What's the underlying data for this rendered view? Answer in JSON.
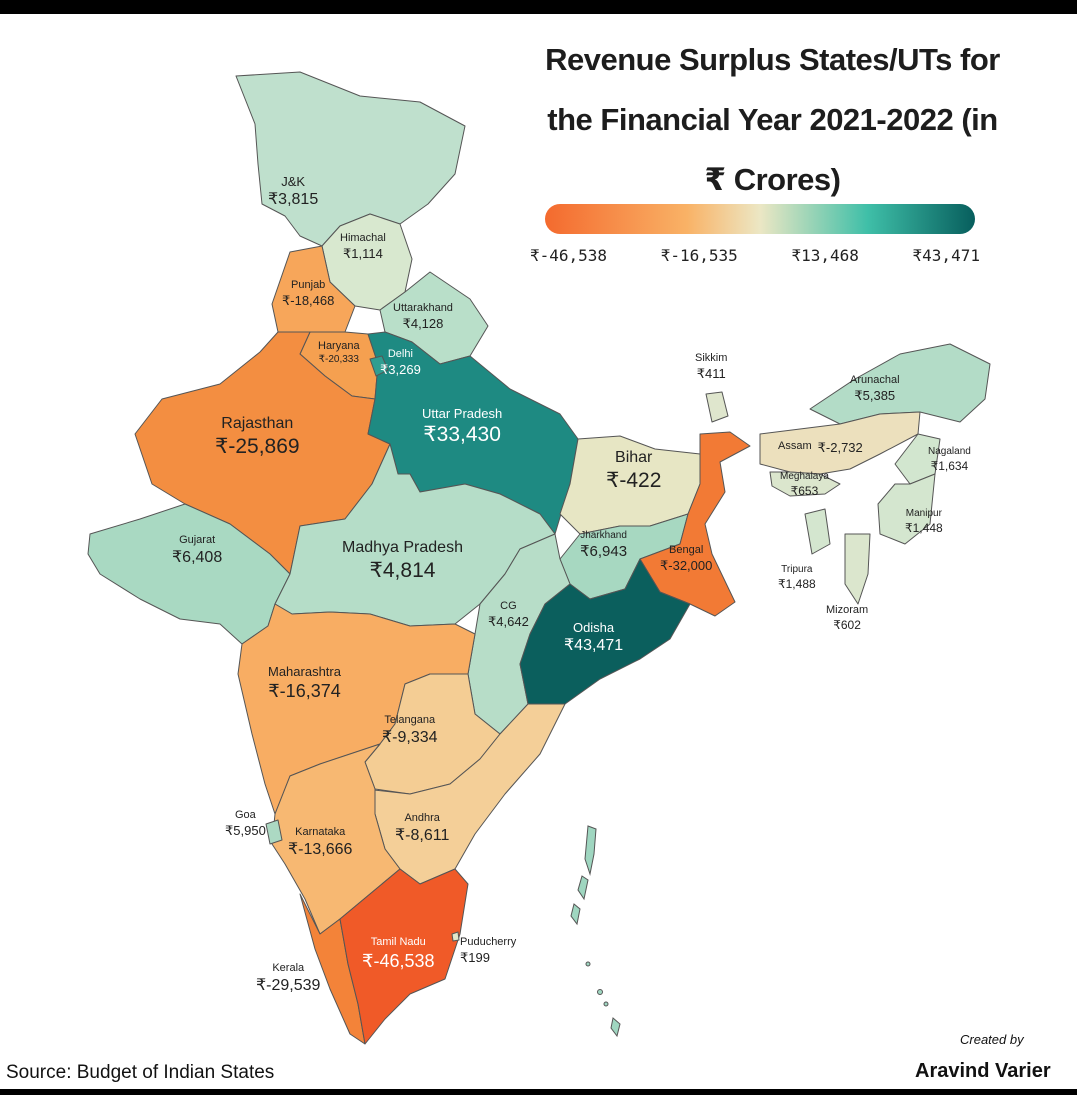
{
  "title_lines": [
    "Revenue Surplus States/UTs for",
    "the Financial Year 2021-2022 (in",
    "₹ Crores)"
  ],
  "legend": {
    "ticks": [
      "₹-46,538",
      "₹-16,535",
      "₹13,468",
      "₹43,471"
    ],
    "colors": [
      "#f46a2e",
      "#f9b266",
      "#ece7c4",
      "#3fbfa8",
      "#075e5d"
    ]
  },
  "regions": [
    {
      "name": "J&K",
      "value": "₹3,815",
      "color": "#bfe0cd"
    },
    {
      "name": "Himachal",
      "value": "₹1,114",
      "color": "#d8e8cf"
    },
    {
      "name": "Punjab",
      "value": "₹-18,468",
      "color": "#f7a65a"
    },
    {
      "name": "Haryana",
      "value": "₹-20,333",
      "color": "#f5a050"
    },
    {
      "name": "Uttarakhand",
      "value": "₹4,128",
      "color": "#b9dfc9"
    },
    {
      "name": "Delhi",
      "value": "₹3,269",
      "color": "#2f9e91"
    },
    {
      "name": "Rajasthan",
      "value": "₹-25,869",
      "color": "#f38e41"
    },
    {
      "name": "Uttar Pradesh",
      "value": "₹33,430",
      "color": "#1e8a82"
    },
    {
      "name": "Bihar",
      "value": "₹-422",
      "color": "#e7e6c4"
    },
    {
      "name": "Sikkim",
      "value": "₹411",
      "color": "#dfe6cd"
    },
    {
      "name": "Arunachal",
      "value": "₹5,385",
      "color": "#b3dcc7"
    },
    {
      "name": "Assam",
      "value": "₹-2,732",
      "color": "#ece0bd"
    },
    {
      "name": "Nagaland",
      "value": "₹1,634",
      "color": "#d2e6cf"
    },
    {
      "name": "Meghalaya",
      "value": "₹653",
      "color": "#dbe6cd"
    },
    {
      "name": "Manipur",
      "value": "₹1,448",
      "color": "#d4e6cf"
    },
    {
      "name": "Tripura",
      "value": "₹1,488",
      "color": "#d4e6cf"
    },
    {
      "name": "Mizoram",
      "value": "₹602",
      "color": "#dbe6cd"
    },
    {
      "name": "Gujarat",
      "value": "₹6,408",
      "color": "#a9d9c2"
    },
    {
      "name": "Madhya Pradesh",
      "value": "₹4,814",
      "color": "#b5ddc8"
    },
    {
      "name": "Jharkhand",
      "value": "₹6,943",
      "color": "#a7d8c1"
    },
    {
      "name": "Bengal",
      "value": "₹-32,000",
      "color": "#f27a35"
    },
    {
      "name": "CG",
      "value": "₹4,642",
      "color": "#b7ddc8"
    },
    {
      "name": "Odisha",
      "value": "₹43,471",
      "color": "#0b5f5d"
    },
    {
      "name": "Maharashtra",
      "value": "₹-16,374",
      "color": "#f8ad63"
    },
    {
      "name": "Telangana",
      "value": "₹-9,334",
      "color": "#f4cd94"
    },
    {
      "name": "Goa",
      "value": "₹5,950",
      "color": "#acd9c3"
    },
    {
      "name": "Andhra",
      "value": "₹-8,611",
      "color": "#f4cf98"
    },
    {
      "name": "Karnataka",
      "value": "₹-13,666",
      "color": "#f7b872"
    },
    {
      "name": "Tamil Nadu",
      "value": "₹-46,538",
      "color": "#f05a28"
    },
    {
      "name": "Puducherry",
      "value": "₹199",
      "color": "#e3e7cb"
    },
    {
      "name": "Kerala",
      "value": "₹-29,539",
      "color": "#f38339"
    }
  ],
  "source": "Source: Budget of Indian States",
  "credit": {
    "label": "Created by",
    "name": "Aravind Varier"
  }
}
